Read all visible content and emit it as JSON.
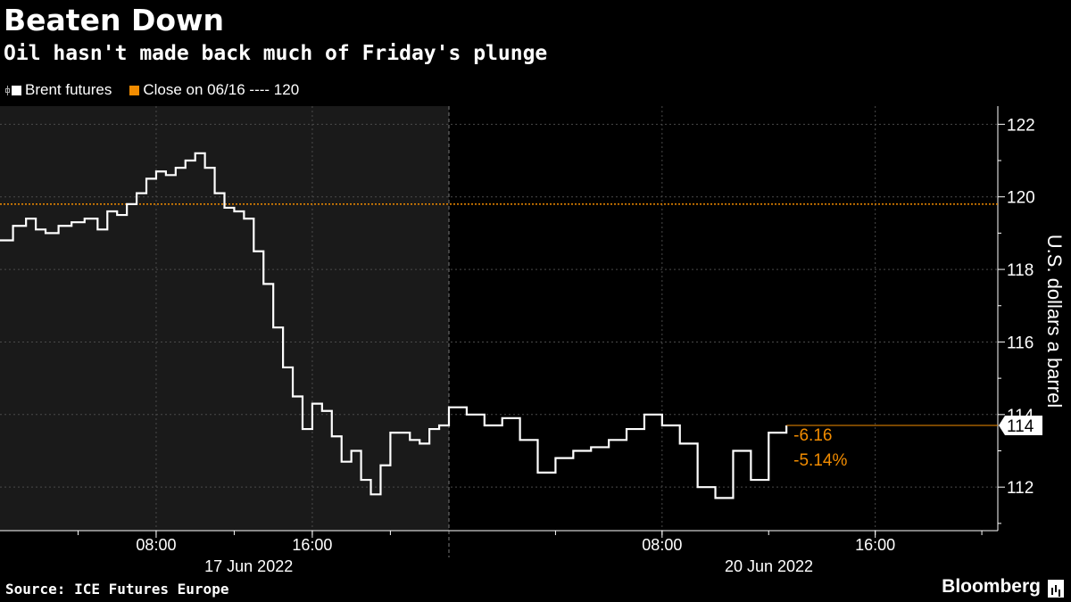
{
  "title": "Beaten Down",
  "subtitle": "Oil hasn't made back much of Friday's plunge",
  "legend": [
    {
      "label": "Brent futures",
      "color": "#ffffff",
      "icon": "price-bar-icon"
    },
    {
      "label": "Close on 06/16 ---- 120",
      "color": "#f28c00"
    }
  ],
  "source": "Source: ICE Futures Europe",
  "brand": "Bloomberg",
  "colors": {
    "background": "#000000",
    "shaded_session": "#1a1a1a",
    "series": "#ffffff",
    "reference": "#f28c00",
    "grid": "#555555"
  },
  "chart_data": {
    "type": "line",
    "title": "Beaten Down",
    "subtitle": "Oil hasn't made back much of Friday's plunge",
    "ylabel": "U.S. dollars a barrel",
    "ylim": [
      110.8,
      122.5
    ],
    "yticks": [
      112,
      114,
      116,
      118,
      120,
      122
    ],
    "y_axis_side": "right",
    "x_axis_time": [
      "17 Jun 2022 00:00",
      "20 Jun 2022 20:00"
    ],
    "xticks": [
      {
        "label": "08:00",
        "time": "17 Jun 2022 08:00"
      },
      {
        "label": "16:00",
        "time": "17 Jun 2022 16:00"
      },
      {
        "label": "08:00",
        "time": "20 Jun 2022 08:00"
      },
      {
        "label": "16:00",
        "time": "20 Jun 2022 16:00"
      }
    ],
    "day_labels": [
      {
        "label": "17 Jun 2022",
        "time": "17 Jun 2022 10:00"
      },
      {
        "label": "20 Jun 2022",
        "time": "20 Jun 2022 10:00"
      }
    ],
    "grid": true,
    "legend_position": "top-left",
    "reference_line": {
      "name": "Close on 06/16",
      "value": 119.8
    },
    "annotations": {
      "last_value": "114",
      "change": "-6.16",
      "change_pct": "-5.14%"
    },
    "series": [
      {
        "name": "Brent futures",
        "color": "#ffffff",
        "x": [
          "17 Jun 2022 00:00",
          "17 Jun 2022 00:40",
          "17 Jun 2022 01:20",
          "17 Jun 2022 01:50",
          "17 Jun 2022 02:20",
          "17 Jun 2022 03:00",
          "17 Jun 2022 03:40",
          "17 Jun 2022 04:20",
          "17 Jun 2022 05:00",
          "17 Jun 2022 05:30",
          "17 Jun 2022 06:00",
          "17 Jun 2022 06:30",
          "17 Jun 2022 07:00",
          "17 Jun 2022 07:30",
          "17 Jun 2022 08:00",
          "17 Jun 2022 08:30",
          "17 Jun 2022 09:00",
          "17 Jun 2022 09:30",
          "17 Jun 2022 10:00",
          "17 Jun 2022 10:30",
          "17 Jun 2022 11:00",
          "17 Jun 2022 11:30",
          "17 Jun 2022 12:00",
          "17 Jun 2022 12:30",
          "17 Jun 2022 13:00",
          "17 Jun 2022 13:30",
          "17 Jun 2022 14:00",
          "17 Jun 2022 14:30",
          "17 Jun 2022 15:00",
          "17 Jun 2022 15:30",
          "17 Jun 2022 16:00",
          "17 Jun 2022 16:30",
          "17 Jun 2022 17:00",
          "17 Jun 2022 17:30",
          "17 Jun 2022 18:00",
          "17 Jun 2022 18:30",
          "17 Jun 2022 19:00",
          "17 Jun 2022 19:30",
          "17 Jun 2022 20:00",
          "17 Jun 2022 20:30",
          "17 Jun 2022 21:00",
          "17 Jun 2022 21:30",
          "17 Jun 2022 22:00",
          "17 Jun 2022 22:30",
          "20 Jun 2022 00:00",
          "20 Jun 2022 00:40",
          "20 Jun 2022 01:20",
          "20 Jun 2022 02:00",
          "20 Jun 2022 02:40",
          "20 Jun 2022 03:20",
          "20 Jun 2022 04:00",
          "20 Jun 2022 04:40",
          "20 Jun 2022 05:20",
          "20 Jun 2022 06:00",
          "20 Jun 2022 06:40",
          "20 Jun 2022 07:20",
          "20 Jun 2022 08:00",
          "20 Jun 2022 08:40",
          "20 Jun 2022 09:20",
          "20 Jun 2022 10:00",
          "20 Jun 2022 10:40",
          "20 Jun 2022 11:20",
          "20 Jun 2022 12:00",
          "20 Jun 2022 12:40"
        ],
        "values": [
          118.8,
          119.2,
          119.4,
          119.1,
          119.0,
          119.2,
          119.3,
          119.4,
          119.1,
          119.6,
          119.5,
          119.8,
          120.1,
          120.5,
          120.7,
          120.6,
          120.8,
          121.0,
          121.2,
          120.8,
          120.1,
          119.7,
          119.6,
          119.4,
          118.5,
          117.6,
          116.4,
          115.3,
          114.5,
          113.6,
          114.3,
          114.1,
          113.4,
          112.7,
          113.0,
          112.2,
          111.8,
          112.6,
          113.5,
          113.5,
          113.3,
          113.2,
          113.6,
          113.7,
          114.2,
          114.0,
          113.7,
          113.9,
          113.3,
          112.4,
          112.8,
          113.0,
          113.1,
          113.3,
          113.6,
          114.0,
          113.7,
          113.2,
          112.0,
          111.7,
          113.0,
          112.2,
          113.5,
          113.7
        ]
      }
    ]
  }
}
